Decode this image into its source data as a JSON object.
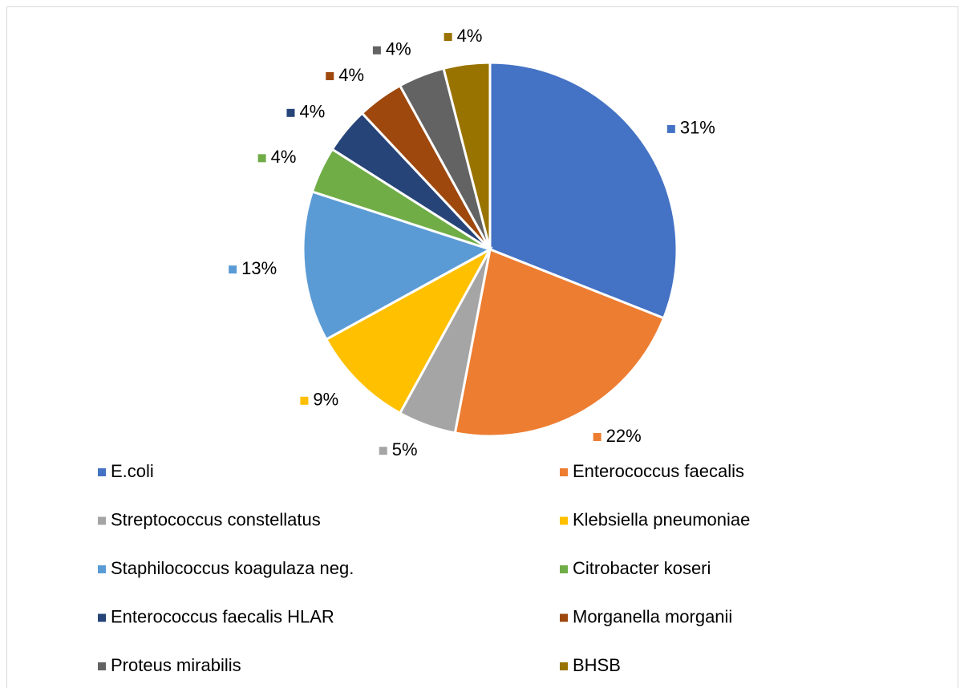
{
  "chart_data": {
    "type": "pie",
    "categories": [
      "E.coli",
      "Enterococcus faecalis",
      "Streptococcus constellatus",
      "Klebsiella pneumoniae",
      "Staphilococcus koagulaza neg.",
      "Citrobacter koseri",
      "Enterococcus faecalis HLAR",
      "Morganella morganii",
      "Proteus mirabilis",
      "BHSB"
    ],
    "values": [
      31,
      22,
      5,
      9,
      13,
      4,
      4,
      4,
      4,
      4
    ],
    "value_labels": [
      "31%",
      "22%",
      "5%",
      "9%",
      "13%",
      "4%",
      "4%",
      "4%",
      "4%",
      "4%"
    ],
    "colors": [
      "#4472c4",
      "#ed7d31",
      "#a5a5a5",
      "#ffc000",
      "#5b9bd5",
      "#70ad47",
      "#264478",
      "#9e480e",
      "#636363",
      "#997300"
    ],
    "legend": "bottom"
  }
}
